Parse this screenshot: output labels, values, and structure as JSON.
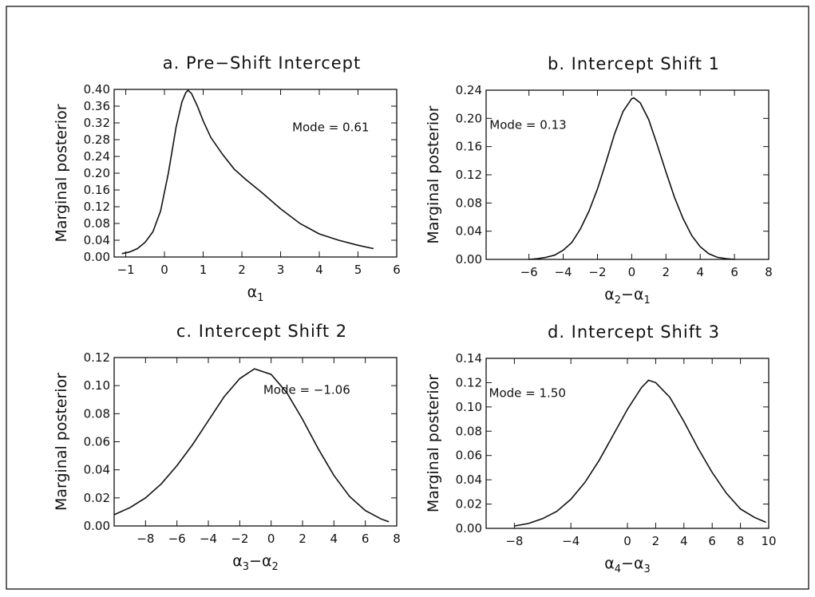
{
  "chart_data": [
    {
      "type": "line",
      "title": "a. Pre−Shift Intercept",
      "xlabel": "α",
      "xlabel_sub": "1",
      "ylabel": "Marginal posterior",
      "xlim": [
        -1.3,
        6
      ],
      "ylim": [
        0,
        0.4
      ],
      "xticks": [
        -1,
        0,
        1,
        2,
        3,
        4,
        5,
        6
      ],
      "xtick_labels": [
        "−1",
        "0",
        "1",
        "2",
        "3",
        "4",
        "5",
        "6"
      ],
      "yticks": [
        0,
        0.04,
        0.08,
        0.12,
        0.16,
        0.2,
        0.24,
        0.28,
        0.32,
        0.36,
        0.4
      ],
      "ytick_labels": [
        "0.00",
        "0.04",
        "0.08",
        "0.12",
        "0.16",
        "0.20",
        "0.24",
        "0.28",
        "0.32",
        "0.36",
        "0.40"
      ],
      "annotation": "Mode = 0.61",
      "annotation_at": [
        3.3,
        0.3
      ],
      "series": [
        {
          "x": [
            -1.1,
            -0.9,
            -0.7,
            -0.5,
            -0.3,
            -0.1,
            0.1,
            0.3,
            0.45,
            0.55,
            0.61,
            0.7,
            0.85,
            1.0,
            1.2,
            1.5,
            1.8,
            2.1,
            2.5,
            3.0,
            3.5,
            4.0,
            4.5,
            5.0,
            5.4
          ],
          "y": [
            0.008,
            0.012,
            0.02,
            0.035,
            0.06,
            0.11,
            0.2,
            0.31,
            0.37,
            0.392,
            0.398,
            0.39,
            0.36,
            0.325,
            0.285,
            0.245,
            0.21,
            0.185,
            0.155,
            0.115,
            0.08,
            0.055,
            0.04,
            0.028,
            0.02
          ]
        }
      ]
    },
    {
      "type": "line",
      "title": "b. Intercept Shift 1",
      "xlabel": "α",
      "xlabel_sub": "2",
      "xlabel_tail": "−α",
      "xlabel_tail_sub": "1",
      "ylabel": "Marginal posterior",
      "xlim": [
        -8.5,
        8
      ],
      "ylim": [
        0,
        0.24
      ],
      "xticks": [
        -6,
        -4,
        -2,
        0,
        2,
        4,
        6,
        8
      ],
      "xtick_labels": [
        "−6",
        "−4",
        "−2",
        "0",
        "2",
        "4",
        "6",
        "8"
      ],
      "yticks": [
        0,
        0.04,
        0.08,
        0.12,
        0.16,
        0.2,
        0.24
      ],
      "ytick_labels": [
        "0.00",
        "0.04",
        "0.08",
        "0.12",
        "0.16",
        "0.20",
        "0.24"
      ],
      "annotation": "Mode = 0.13",
      "annotation_at": [
        -8.3,
        0.185
      ],
      "series": [
        {
          "x": [
            -6,
            -5.5,
            -5,
            -4.5,
            -4,
            -3.5,
            -3,
            -2.5,
            -2,
            -1.5,
            -1,
            -0.5,
            0,
            0.13,
            0.5,
            1,
            1.5,
            2,
            2.5,
            3,
            3.5,
            4,
            4.5,
            5,
            5.5,
            6
          ],
          "y": [
            0.0,
            0.001,
            0.003,
            0.006,
            0.013,
            0.024,
            0.043,
            0.068,
            0.1,
            0.138,
            0.178,
            0.21,
            0.228,
            0.229,
            0.222,
            0.198,
            0.162,
            0.124,
            0.088,
            0.058,
            0.034,
            0.018,
            0.008,
            0.003,
            0.001,
            0.0
          ]
        }
      ]
    },
    {
      "type": "line",
      "title": "c. Intercept Shift 2",
      "xlabel": "α",
      "xlabel_sub": "3",
      "xlabel_tail": "−α",
      "xlabel_tail_sub": "2",
      "ylabel": "Marginal posterior",
      "xlim": [
        -10,
        8
      ],
      "ylim": [
        0,
        0.12
      ],
      "xticks": [
        -8,
        -6,
        -4,
        -2,
        0,
        2,
        4,
        6,
        8
      ],
      "xtick_labels": [
        "−8",
        "−6",
        "−4",
        "−2",
        "0",
        "2",
        "4",
        "6",
        "8"
      ],
      "yticks": [
        0,
        0.02,
        0.04,
        0.06,
        0.08,
        0.1,
        0.12
      ],
      "ytick_labels": [
        "0.00",
        "0.02",
        "0.04",
        "0.06",
        "0.08",
        "0.10",
        "0.12"
      ],
      "annotation": "Mode = −1.06",
      "annotation_at": [
        -0.5,
        0.094
      ],
      "series": [
        {
          "x": [
            -10,
            -9,
            -8,
            -7,
            -6,
            -5,
            -4,
            -3,
            -2,
            -1.06,
            0,
            1,
            2,
            3,
            4,
            5,
            6,
            7,
            7.5
          ],
          "y": [
            0.008,
            0.013,
            0.02,
            0.03,
            0.043,
            0.058,
            0.075,
            0.092,
            0.105,
            0.112,
            0.108,
            0.095,
            0.076,
            0.055,
            0.036,
            0.021,
            0.011,
            0.005,
            0.003
          ]
        }
      ]
    },
    {
      "type": "line",
      "title": "d. Intercept Shift 3",
      "xlabel": "α",
      "xlabel_sub": "4",
      "xlabel_tail": "−α",
      "xlabel_tail_sub": "3",
      "ylabel": "Marginal posterior",
      "xlim": [
        -10,
        10
      ],
      "ylim": [
        0,
        0.14
      ],
      "xticks": [
        -8,
        -4,
        0,
        2,
        4,
        6,
        8,
        10
      ],
      "xtick_labels": [
        "−8",
        "−4",
        "0",
        "2",
        "4",
        "6",
        "8",
        "10"
      ],
      "yticks": [
        0,
        0.02,
        0.04,
        0.06,
        0.08,
        0.1,
        0.12,
        0.14
      ],
      "ytick_labels": [
        "0.00",
        "0.02",
        "0.04",
        "0.06",
        "0.08",
        "0.10",
        "0.12",
        "0.14"
      ],
      "annotation": "Mode = 1.50",
      "annotation_at": [
        -9.8,
        0.108
      ],
      "series": [
        {
          "x": [
            -8,
            -7,
            -6,
            -5,
            -4,
            -3,
            -2,
            -1,
            0,
            1,
            1.5,
            2,
            3,
            4,
            5,
            6,
            7,
            8,
            9,
            9.8
          ],
          "y": [
            0.002,
            0.004,
            0.008,
            0.014,
            0.024,
            0.038,
            0.056,
            0.077,
            0.098,
            0.116,
            0.122,
            0.12,
            0.108,
            0.088,
            0.066,
            0.046,
            0.029,
            0.016,
            0.009,
            0.005
          ]
        }
      ]
    }
  ]
}
